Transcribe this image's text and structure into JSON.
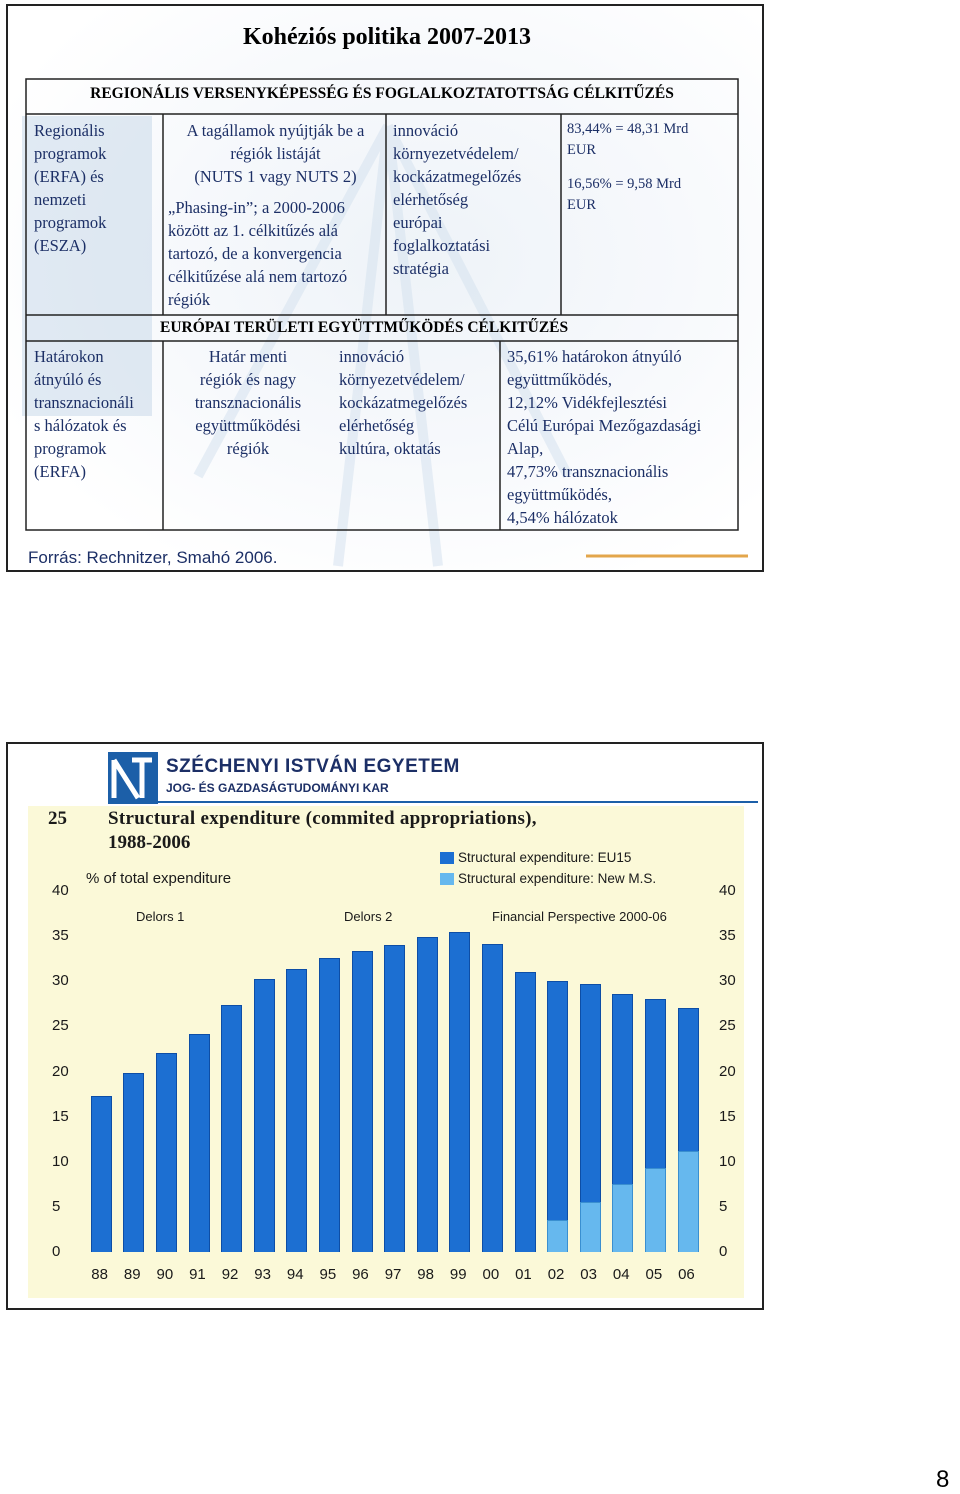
{
  "slide1": {
    "title": "Kohéziós politika 2007-2013",
    "section1_header": "REGIONÁLIS VERSENYKÉPESSÉG ÉS FOGLALKOZTATOTTSÁG CÉLKITŰZÉS",
    "row1_col1": [
      "Regionális",
      "programok",
      "(ERFA) és",
      "nemzeti",
      "programok",
      "(ESZA)"
    ],
    "row1_col2_a": [
      "A tagállamok nyújtják be a",
      "régiók listáját",
      "(NUTS 1 vagy NUTS 2)"
    ],
    "row1_col2_b": [
      "„Phasing-in”; a 2000-2006",
      "között az 1. célkitűzés alá",
      "tartozó, de a konvergencia",
      "célkitűzése alá nem tartozó",
      "régiók"
    ],
    "row1_col3": [
      "innováció",
      "környezetvédelem/",
      "kockázatmegelőzés",
      "elérhetőség",
      "európai",
      "foglalkoztatási",
      "stratégia"
    ],
    "row1_col4_a": [
      "83,44% = 48,31 Mrd",
      "EUR"
    ],
    "row1_col4_b": [
      "16,56% = 9,58 Mrd",
      "EUR"
    ],
    "section2_header": "EURÓPAI TERÜLETI EGYÜTTMŰKÖDÉS CÉLKITŰZÉS",
    "row2_col1": [
      "Határokon",
      "átnyúló és",
      "transznacionáli",
      "s hálózatok és",
      "programok",
      "(ERFA)"
    ],
    "row2_col2": [
      "Határ menti",
      "régiók és nagy",
      "transznacionális",
      "együttműködési",
      "régiók"
    ],
    "row2_col3": [
      "innováció",
      "környezetvédelem/",
      "kockázatmegelőzés",
      "elérhetőség",
      "kultúra, oktatás"
    ],
    "row2_col4": [
      "35,61% határokon átnyúló",
      "együttműködés,",
      "12,12% Vidékfejlesztési",
      "Célú Európai Mezőgazdasági",
      "Alap,",
      "47,73% transznacionális",
      "együttműködés,",
      "4,54% hálózatok"
    ],
    "source": "Forrás: Rechnitzer, Smahó 2006."
  },
  "slide2": {
    "university_name": "SZÉCHENYI ISTVÁN EGYETEM",
    "faculty_name": "JOG- ÉS GAZDASÁGTUDOMÁNYI KAR"
  },
  "page_number": "8",
  "colors": {
    "eu15": "#1c6fd2",
    "new_ms": "#66b8ee",
    "chart_bg": "#fbf9d8",
    "title_blue": "#1c2f66"
  },
  "chart_data": {
    "type": "bar",
    "figure_number": "25",
    "title": "Structural expenditure (commited appropriations), 1988-2006",
    "title_line1": "Structural expenditure (commited appropriations),",
    "title_line2": "1988-2006",
    "ylabel": "% of total expenditure",
    "ylim": [
      0,
      40
    ],
    "yticks": [
      0,
      5,
      10,
      15,
      20,
      25,
      30,
      35,
      40
    ],
    "categories": [
      "88",
      "89",
      "90",
      "91",
      "92",
      "93",
      "94",
      "95",
      "96",
      "97",
      "98",
      "99",
      "00",
      "01",
      "02",
      "03",
      "04",
      "05",
      "06"
    ],
    "series": [
      {
        "name": "Structural expenditure: EU15",
        "values": [
          17.3,
          19.8,
          22.0,
          24.1,
          27.4,
          30.2,
          31.4,
          32.6,
          33.3,
          34.0,
          34.9,
          35.5,
          34.1,
          31.0,
          30.0,
          29.7,
          28.6,
          28.0,
          27.0
        ]
      },
      {
        "name": "Structural expenditure: New M.S.",
        "values": [
          0,
          0,
          0,
          0,
          0,
          0,
          0,
          0,
          0,
          0,
          0,
          0,
          0,
          0,
          3.6,
          5.5,
          7.5,
          9.3,
          11.2
        ]
      }
    ],
    "period_labels": [
      "Delors 1",
      "Delors 2",
      "Financial Perspective 2000-06"
    ],
    "legend_position": "top-right",
    "grid": false
  }
}
